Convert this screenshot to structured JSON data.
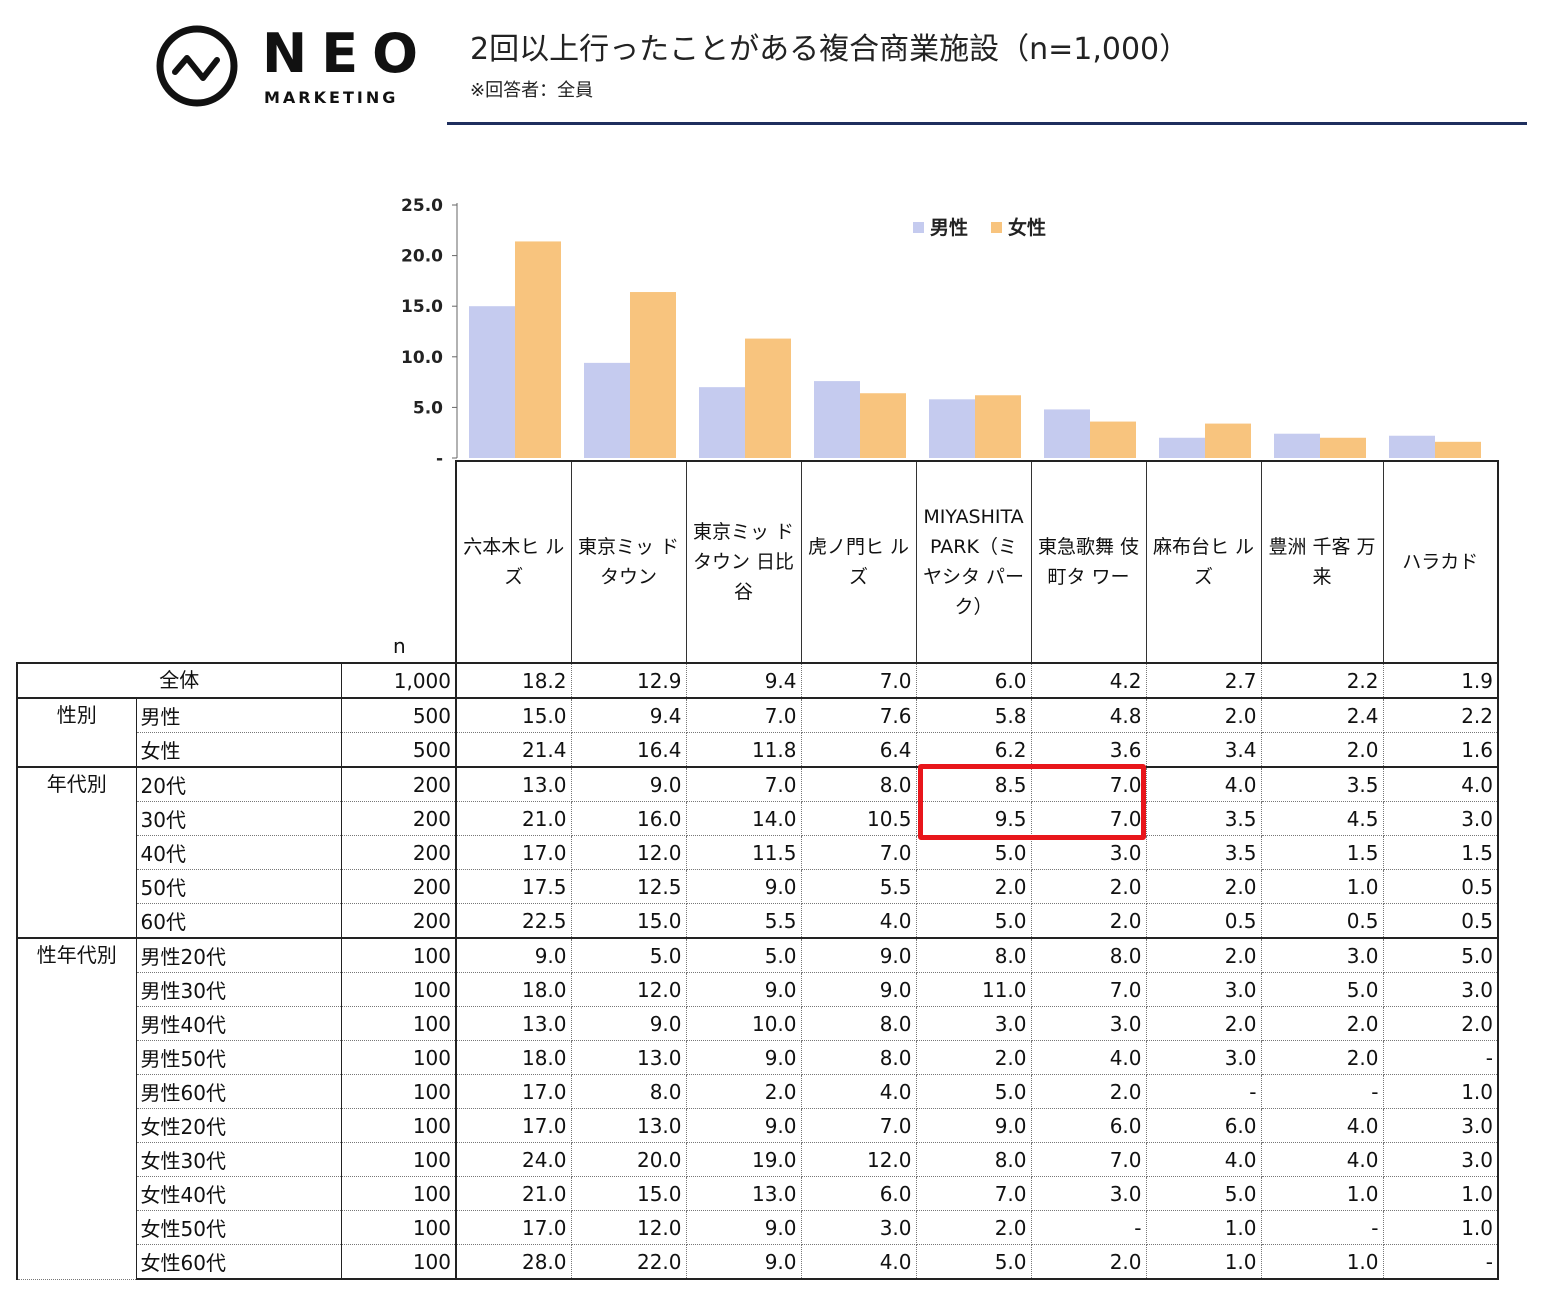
{
  "brand": {
    "name": "NEO",
    "sub": "MARKETING"
  },
  "title": "2回以上行ったことがある複合商業施設（n=1,000）",
  "subtitle": "※回答者：全員",
  "colors": {
    "male": "#c5cbef",
    "female": "#f8c47e",
    "rule": "#1f2f5e",
    "highlight": "#e8161b"
  },
  "chart_data": {
    "type": "bar",
    "categories": [
      "六本木ヒルズ",
      "東京ミッドタウン",
      "東京ミッドタウン日比谷",
      "虎ノ門ヒルズ",
      "MIYASHITA PARK（ミヤシタパーク）",
      "東急歌舞伎町タワー",
      "麻布台ヒルズ",
      "豊洲 千客万来",
      "ハラカド"
    ],
    "series": [
      {
        "name": "男性",
        "values": [
          15.0,
          9.4,
          7.0,
          7.6,
          5.8,
          4.8,
          2.0,
          2.4,
          2.2
        ]
      },
      {
        "name": "女性",
        "values": [
          21.4,
          16.4,
          11.8,
          6.4,
          6.2,
          3.6,
          3.4,
          2.0,
          1.6
        ]
      }
    ],
    "ylim": [
      0,
      25
    ],
    "yticks": [
      "-",
      "5.0",
      "10.0",
      "15.0",
      "20.0",
      "25.0"
    ],
    "legend": "top-right",
    "grid": false
  },
  "table": {
    "n_label": "n",
    "headers": [
      "六本木ヒ ルズ",
      "東京ミッ ドタウン",
      "東京ミッ ドタウン 日比谷",
      "虎ノ門ヒ ルズ",
      "MIYASHITA PARK（ミ ヤシタ パーク）",
      "東急歌舞 伎町タ ワー",
      "麻布台ヒ ルズ",
      "豊洲 千客 万来",
      "ハラカド"
    ],
    "rows": [
      {
        "group": "全体",
        "label": "",
        "n": "1,000",
        "values": [
          "18.2",
          "12.9",
          "9.4",
          "7.0",
          "6.0",
          "4.2",
          "2.7",
          "2.2",
          "1.9"
        ]
      },
      {
        "group": "性別",
        "label": "男性",
        "n": "500",
        "values": [
          "15.0",
          "9.4",
          "7.0",
          "7.6",
          "5.8",
          "4.8",
          "2.0",
          "2.4",
          "2.2"
        ]
      },
      {
        "group": "",
        "label": "女性",
        "n": "500",
        "values": [
          "21.4",
          "16.4",
          "11.8",
          "6.4",
          "6.2",
          "3.6",
          "3.4",
          "2.0",
          "1.6"
        ]
      },
      {
        "group": "年代別",
        "label": "20代",
        "n": "200",
        "values": [
          "13.0",
          "9.0",
          "7.0",
          "8.0",
          "8.5",
          "7.0",
          "4.0",
          "3.5",
          "4.0"
        ]
      },
      {
        "group": "",
        "label": "30代",
        "n": "200",
        "values": [
          "21.0",
          "16.0",
          "14.0",
          "10.5",
          "9.5",
          "7.0",
          "3.5",
          "4.5",
          "3.0"
        ]
      },
      {
        "group": "",
        "label": "40代",
        "n": "200",
        "values": [
          "17.0",
          "12.0",
          "11.5",
          "7.0",
          "5.0",
          "3.0",
          "3.5",
          "1.5",
          "1.5"
        ]
      },
      {
        "group": "",
        "label": "50代",
        "n": "200",
        "values": [
          "17.5",
          "12.5",
          "9.0",
          "5.5",
          "2.0",
          "2.0",
          "2.0",
          "1.0",
          "0.5"
        ]
      },
      {
        "group": "",
        "label": "60代",
        "n": "200",
        "values": [
          "22.5",
          "15.0",
          "5.5",
          "4.0",
          "5.0",
          "2.0",
          "0.5",
          "0.5",
          "0.5"
        ]
      },
      {
        "group": "性年代別",
        "label": "男性20代",
        "n": "100",
        "values": [
          "9.0",
          "5.0",
          "5.0",
          "9.0",
          "8.0",
          "8.0",
          "2.0",
          "3.0",
          "5.0"
        ]
      },
      {
        "group": "",
        "label": "男性30代",
        "n": "100",
        "values": [
          "18.0",
          "12.0",
          "9.0",
          "9.0",
          "11.0",
          "7.0",
          "3.0",
          "5.0",
          "3.0"
        ]
      },
      {
        "group": "",
        "label": "男性40代",
        "n": "100",
        "values": [
          "13.0",
          "9.0",
          "10.0",
          "8.0",
          "3.0",
          "3.0",
          "2.0",
          "2.0",
          "2.0"
        ]
      },
      {
        "group": "",
        "label": "男性50代",
        "n": "100",
        "values": [
          "18.0",
          "13.0",
          "9.0",
          "8.0",
          "2.0",
          "4.0",
          "3.0",
          "2.0",
          "-"
        ]
      },
      {
        "group": "",
        "label": "男性60代",
        "n": "100",
        "values": [
          "17.0",
          "8.0",
          "2.0",
          "4.0",
          "5.0",
          "2.0",
          "-",
          "-",
          "1.0"
        ]
      },
      {
        "group": "",
        "label": "女性20代",
        "n": "100",
        "values": [
          "17.0",
          "13.0",
          "9.0",
          "7.0",
          "9.0",
          "6.0",
          "6.0",
          "4.0",
          "3.0"
        ]
      },
      {
        "group": "",
        "label": "女性30代",
        "n": "100",
        "values": [
          "24.0",
          "20.0",
          "19.0",
          "12.0",
          "8.0",
          "7.0",
          "4.0",
          "4.0",
          "3.0"
        ]
      },
      {
        "group": "",
        "label": "女性40代",
        "n": "100",
        "values": [
          "21.0",
          "15.0",
          "13.0",
          "6.0",
          "7.0",
          "3.0",
          "5.0",
          "1.0",
          "1.0"
        ]
      },
      {
        "group": "",
        "label": "女性50代",
        "n": "100",
        "values": [
          "17.0",
          "12.0",
          "9.0",
          "3.0",
          "2.0",
          "-",
          "1.0",
          "-",
          "1.0"
        ]
      },
      {
        "group": "",
        "label": "女性60代",
        "n": "100",
        "values": [
          "28.0",
          "22.0",
          "9.0",
          "4.0",
          "5.0",
          "2.0",
          "1.0",
          "1.0",
          "-"
        ]
      }
    ]
  }
}
